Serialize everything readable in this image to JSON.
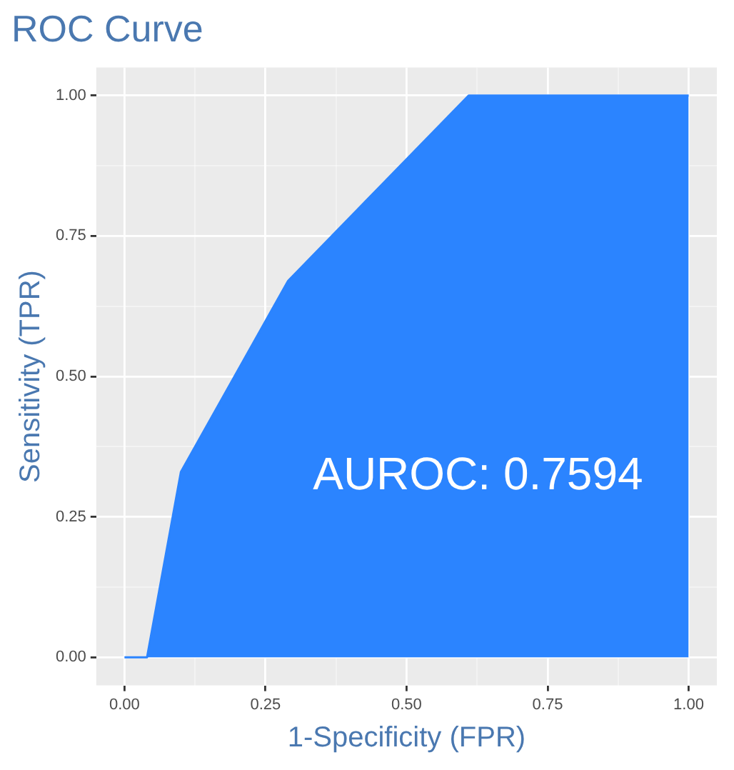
{
  "chart_data": {
    "type": "area",
    "title": "ROC Curve",
    "xlabel": "1-Specificity (FPR)",
    "ylabel": "Sensitivity (TPR)",
    "x": [
      0,
      0.04,
      0.1,
      0.29,
      0.61,
      1
    ],
    "series": [
      {
        "color": "#2b84ff",
        "values": [
          0,
          0,
          0.33,
          0.67,
          1,
          1
        ]
      }
    ],
    "xlim": [
      -0.05,
      1.05
    ],
    "ylim": [
      -0.05,
      1.05
    ],
    "xticks": [
      {
        "value": 0,
        "label": "0.00"
      },
      {
        "value": 0.125,
        "label": null
      },
      {
        "value": 0.25,
        "label": "0.25"
      },
      {
        "value": 0.375,
        "label": null
      },
      {
        "value": 0.5,
        "label": "0.50"
      },
      {
        "value": 0.625,
        "label": null
      },
      {
        "value": 0.75,
        "label": "0.75"
      },
      {
        "value": 0.875,
        "label": null
      },
      {
        "value": 1,
        "label": "1.00"
      }
    ],
    "yticks": [
      {
        "value": 0,
        "label": "0.00"
      },
      {
        "value": 0.125,
        "label": null
      },
      {
        "value": 0.25,
        "label": "0.25"
      },
      {
        "value": 0.375,
        "label": null
      },
      {
        "value": 0.5,
        "label": "0.50"
      },
      {
        "value": 0.625,
        "label": null
      },
      {
        "value": 0.75,
        "label": "0.75"
      },
      {
        "value": 0.875,
        "label": null
      },
      {
        "value": 1,
        "label": "1.00"
      }
    ],
    "grid": true,
    "legend": false,
    "annotations": [
      "AUROC: 0.7594"
    ]
  }
}
